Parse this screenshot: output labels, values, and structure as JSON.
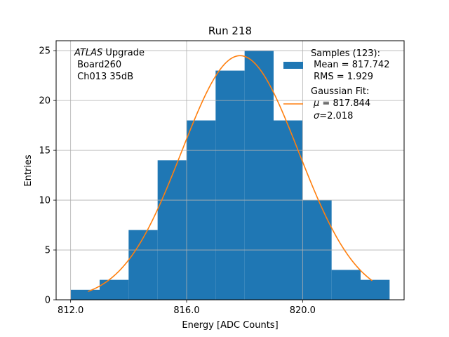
{
  "chart_data": {
    "type": "bar",
    "title": "Run 218",
    "xlabel": "Energy [ADC Counts]",
    "ylabel": "Entries",
    "xlim": [
      811.5,
      823.5
    ],
    "ylim": [
      0,
      26
    ],
    "grid": true,
    "x_ticks": [
      812.0,
      816.0,
      820.0
    ],
    "x_tick_labels": [
      "812.0",
      "816.0",
      "820.0"
    ],
    "y_ticks": [
      0,
      5,
      10,
      15,
      20,
      25
    ],
    "y_tick_labels": [
      "0",
      "5",
      "10",
      "15",
      "20",
      "25"
    ],
    "bin_edges": [
      812.0,
      813.0,
      814.0,
      815.0,
      816.0,
      817.0,
      818.0,
      819.0,
      820.0,
      821.0,
      822.0,
      823.0
    ],
    "counts": [
      1,
      2,
      7,
      14,
      18,
      23,
      25,
      18,
      10,
      3,
      2
    ],
    "fit": {
      "type": "gaussian",
      "amplitude": 24.5,
      "mu": 817.844,
      "sigma": 2.018,
      "x_range": [
        812.6,
        822.4
      ]
    },
    "annotation": {
      "italic": "ATLAS",
      "rest": " Upgrade",
      "line2": " Board260",
      "line3": " Ch013 35dB"
    },
    "legend": {
      "location": "top-right",
      "samples_lines": [
        "Samples (123):",
        " Mean = 817.742",
        " RMS = 1.929"
      ],
      "fit_lines": [
        "Gaussian Fit:",
        " = 817.844",
        "=2.018"
      ],
      "fit_symbols": [
        "μ",
        "σ"
      ]
    },
    "colors": {
      "bars": "#1f77b4",
      "fit": "#ff7f0e",
      "grid": "#b0b0b0"
    }
  }
}
